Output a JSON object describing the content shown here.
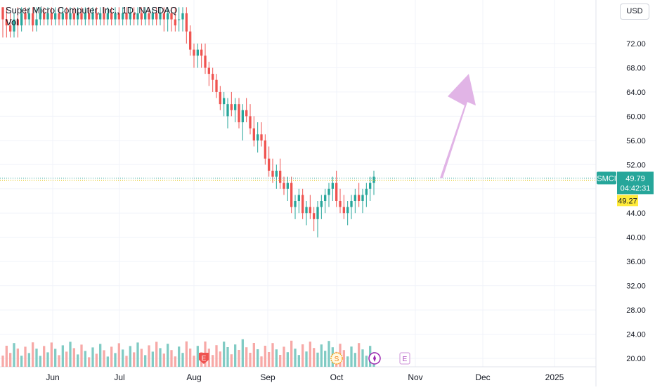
{
  "header": {
    "title": "Super Micro Computer, Inc., 1D, NASDAQ",
    "volume_label": "Vol",
    "currency": "USD"
  },
  "price_scale": {
    "ticks": [
      "72.00",
      "68.00",
      "64.00",
      "60.00",
      "56.00",
      "52.00",
      "48.00",
      "44.00",
      "40.00",
      "36.00",
      "32.00",
      "28.00",
      "24.00",
      "20.00"
    ]
  },
  "time_axis": {
    "labels": [
      "Jun",
      "Jul",
      "Aug",
      "Sep",
      "Oct",
      "Nov",
      "Dec",
      "2025"
    ]
  },
  "badges": {
    "symbol": "SMCI",
    "last_price": "49.79",
    "countdown": "04:42:31",
    "prev_close": "49.27"
  },
  "events": {
    "earnings_1": "E",
    "dividend": "S",
    "earnings_2": "E"
  },
  "colors": {
    "up": "#26a69a",
    "down": "#ef5350",
    "vol_up": "#80cbc4",
    "vol_down": "#f7a9a7",
    "arrow": "#e1b4e6",
    "last_price_line": "#26a69a",
    "prev_close_bg": "#ffeb3b",
    "grid": "#f0f3fa"
  },
  "chart_data": {
    "type": "candlestick",
    "symbol": "SMCI",
    "interval": "1D",
    "exchange": "NASDAQ",
    "ylim": [
      18,
      79
    ],
    "last_price": 49.79,
    "prev_close": 49.27,
    "annotation_arrow": {
      "from": 49.8,
      "to": 67.0
    },
    "months": [
      "Jun",
      "Jul",
      "Aug",
      "Sep",
      "Oct",
      "Nov",
      "Dec",
      "2025"
    ],
    "candles": [
      [
        78,
        78,
        73,
        76
      ],
      [
        76,
        78,
        73,
        75
      ],
      [
        75,
        77,
        73,
        74
      ],
      [
        74,
        77,
        73,
        76
      ],
      [
        76,
        78,
        73,
        75
      ],
      [
        75,
        78,
        74,
        77
      ],
      [
        77,
        78,
        75,
        76
      ],
      [
        76,
        78,
        75,
        77
      ],
      [
        77,
        78,
        74,
        75
      ],
      [
        75,
        78,
        74,
        76
      ],
      [
        76,
        78,
        75,
        77
      ],
      [
        77,
        78,
        75,
        76
      ],
      [
        76,
        78,
        75,
        77
      ],
      [
        77,
        78,
        75,
        76
      ],
      [
        76,
        78,
        75,
        77
      ],
      [
        77,
        78,
        75,
        76
      ],
      [
        76,
        78,
        75,
        77
      ],
      [
        77,
        78,
        75,
        76
      ],
      [
        76,
        78,
        75,
        77
      ],
      [
        77,
        78,
        75,
        76
      ],
      [
        76,
        78,
        75,
        77
      ],
      [
        77,
        78,
        75,
        76
      ],
      [
        76,
        78,
        75,
        77
      ],
      [
        77,
        78,
        75,
        76
      ],
      [
        76,
        78,
        75,
        77
      ],
      [
        77,
        78,
        75,
        76
      ],
      [
        76,
        78,
        75,
        77
      ],
      [
        77,
        78,
        75,
        76
      ],
      [
        76,
        78,
        75,
        77
      ],
      [
        77,
        78,
        75,
        76
      ],
      [
        76,
        78,
        75,
        77
      ],
      [
        77,
        78,
        75,
        76
      ],
      [
        76,
        78,
        75,
        77
      ],
      [
        77,
        78,
        75,
        76
      ],
      [
        76,
        78,
        75,
        77
      ],
      [
        77,
        78,
        75,
        76
      ],
      [
        76,
        78,
        75,
        77
      ],
      [
        77,
        78,
        75,
        76
      ],
      [
        76,
        78,
        75,
        77
      ],
      [
        77,
        78,
        75,
        76
      ],
      [
        76,
        78,
        75,
        77
      ],
      [
        77,
        78,
        75,
        76
      ],
      [
        76,
        78,
        75,
        77
      ],
      [
        77,
        78,
        74,
        76
      ],
      [
        76,
        78,
        74,
        77
      ],
      [
        77,
        78,
        74,
        76
      ],
      [
        76,
        78,
        74,
        75
      ],
      [
        76,
        78,
        74,
        76
      ],
      [
        76,
        78,
        74,
        77
      ],
      [
        77,
        78,
        72,
        74
      ],
      [
        74,
        75,
        70,
        71
      ],
      [
        71,
        72,
        68,
        70
      ],
      [
        70,
        72,
        68,
        71
      ],
      [
        71,
        72,
        68,
        70
      ],
      [
        70,
        72,
        67,
        68
      ],
      [
        68,
        69,
        65,
        67
      ],
      [
        67,
        68,
        64,
        66
      ],
      [
        66,
        67,
        63,
        64
      ],
      [
        64,
        65,
        61,
        62
      ],
      [
        62,
        64,
        60,
        63
      ],
      [
        60,
        63,
        58,
        62
      ],
      [
        62,
        64,
        60,
        61
      ],
      [
        61,
        63,
        59,
        62
      ],
      [
        62,
        63,
        58,
        59
      ],
      [
        59,
        62,
        56,
        61
      ],
      [
        61,
        63,
        59,
        60
      ],
      [
        60,
        62,
        57,
        58
      ],
      [
        58,
        60,
        55,
        56
      ],
      [
        56,
        59,
        54,
        57
      ],
      [
        57,
        59,
        55,
        56
      ],
      [
        56,
        57,
        52,
        53
      ],
      [
        53,
        55,
        50,
        51
      ],
      [
        51,
        53,
        49,
        50
      ],
      [
        50,
        52,
        48,
        51
      ],
      [
        51,
        53,
        48,
        49
      ],
      [
        49,
        50,
        47,
        48
      ],
      [
        48,
        50,
        46,
        49
      ],
      [
        49,
        50,
        44,
        45
      ],
      [
        45,
        47,
        43,
        46
      ],
      [
        46,
        48,
        44,
        47
      ],
      [
        47,
        48,
        43,
        44
      ],
      [
        44,
        46,
        42,
        45
      ],
      [
        45,
        47,
        43,
        44
      ],
      [
        44,
        45,
        41,
        43
      ],
      [
        43,
        46,
        40,
        45
      ],
      [
        45,
        47,
        43,
        46
      ],
      [
        46,
        48,
        44,
        47
      ],
      [
        47,
        49,
        45,
        48
      ],
      [
        48,
        50,
        46,
        49
      ],
      [
        49,
        51,
        45,
        46
      ],
      [
        46,
        48,
        44,
        45
      ],
      [
        45,
        47,
        43,
        44
      ],
      [
        44,
        46,
        42,
        45
      ],
      [
        45,
        47,
        43,
        46
      ],
      [
        46,
        48,
        44,
        47
      ],
      [
        47,
        49,
        45,
        46
      ],
      [
        46,
        48,
        44,
        47
      ],
      [
        47,
        49,
        45,
        48
      ],
      [
        48,
        50,
        46,
        49
      ],
      [
        49,
        51,
        47,
        50
      ]
    ]
  }
}
